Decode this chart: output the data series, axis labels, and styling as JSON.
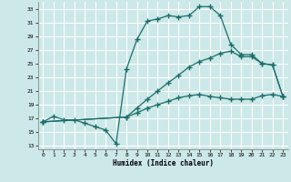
{
  "xlabel": "Humidex (Indice chaleur)",
  "bg_color": "#cce8e8",
  "grid_color": "#ffffff",
  "line_color": "#1a6e6a",
  "xlim": [
    -0.5,
    23.5
  ],
  "ylim": [
    12.5,
    34.0
  ],
  "xticks": [
    0,
    1,
    2,
    3,
    4,
    5,
    6,
    7,
    8,
    9,
    10,
    11,
    12,
    13,
    14,
    15,
    16,
    17,
    18,
    19,
    20,
    21,
    22,
    23
  ],
  "yticks": [
    13,
    15,
    17,
    19,
    21,
    23,
    25,
    27,
    29,
    31,
    33
  ],
  "line1_x": [
    0,
    1,
    2,
    3,
    4,
    5,
    6,
    7,
    8,
    9,
    10,
    11,
    12,
    13,
    14,
    15,
    16,
    17,
    18,
    19,
    20,
    21,
    22,
    23
  ],
  "line1_y": [
    16.5,
    17.3,
    16.8,
    16.8,
    16.3,
    15.8,
    15.3,
    13.3,
    24.2,
    28.5,
    31.2,
    31.5,
    32.0,
    31.8,
    32.0,
    33.3,
    33.3,
    32.0,
    27.8,
    26.3,
    26.3,
    25.0,
    24.8,
    20.2
  ],
  "line2_x": [
    0,
    8,
    9,
    10,
    11,
    12,
    13,
    14,
    15,
    16,
    17,
    18,
    19,
    20,
    21,
    22,
    23
  ],
  "line2_y": [
    16.5,
    17.2,
    18.5,
    19.8,
    21.0,
    22.2,
    23.3,
    24.5,
    25.3,
    25.8,
    26.5,
    26.8,
    26.0,
    26.0,
    25.0,
    24.8,
    20.2
  ],
  "line3_x": [
    0,
    8,
    9,
    10,
    11,
    12,
    13,
    14,
    15,
    16,
    17,
    18,
    19,
    20,
    21,
    22,
    23
  ],
  "line3_y": [
    16.5,
    17.2,
    17.8,
    18.5,
    19.0,
    19.5,
    20.0,
    20.3,
    20.5,
    20.2,
    20.0,
    19.8,
    19.8,
    19.8,
    20.3,
    20.5,
    20.2
  ]
}
